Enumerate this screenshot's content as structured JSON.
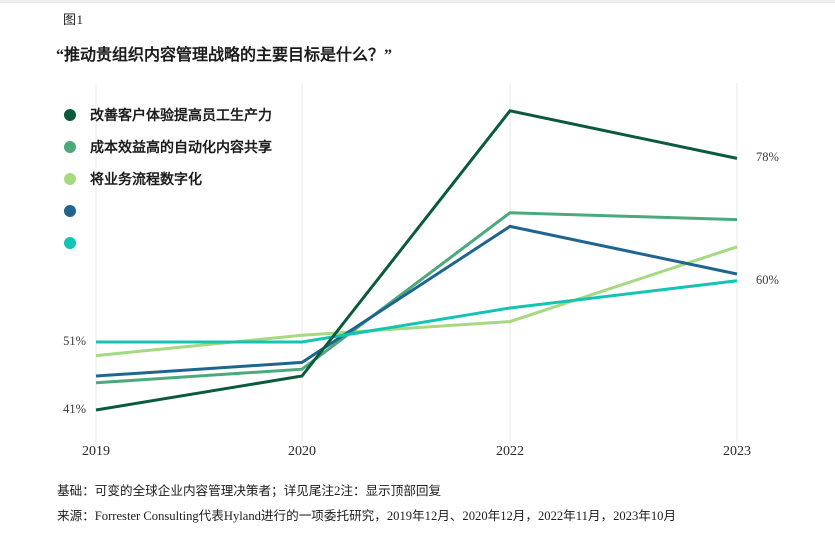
{
  "figure_label": "图1",
  "title": "“推动贵组织内容管理战略的主要目标是什么？”",
  "chart_data": {
    "type": "line",
    "categories": [
      "2019",
      "2020",
      "2022",
      "2023"
    ],
    "series": [
      {
        "name": "改善客户体验提高员工生产力",
        "color": "#0b5a3c",
        "values": [
          41,
          46,
          85,
          78
        ]
      },
      {
        "name": "成本效益高的自动化内容共享",
        "color": "#4aaa7c",
        "values": [
          45,
          47,
          70,
          69
        ]
      },
      {
        "name": "将业务流程数字化",
        "color": "#a5d982",
        "values": [
          49,
          52,
          54,
          65
        ]
      },
      {
        "name": "",
        "color": "#1f6590",
        "values": [
          46,
          48,
          68,
          61
        ]
      },
      {
        "name": "",
        "color": "#12c4b4",
        "values": [
          51,
          51,
          56,
          60
        ]
      }
    ],
    "y_labels": [
      {
        "text": "51%",
        "value": 51,
        "side": "left"
      },
      {
        "text": "41%",
        "value": 41,
        "side": "left"
      },
      {
        "text": "78%",
        "value": 78,
        "side": "right"
      },
      {
        "text": "60%",
        "value": 60,
        "side": "right"
      }
    ],
    "ylim": [
      35,
      90
    ],
    "grid": "vertical-only",
    "gridline_color": "#e8e8e8",
    "legend_position": "top-left",
    "line_width": 3
  },
  "footer": {
    "base_note": "基础：可变的全球企业内容管理决策者；详见尾注2注：显示顶部回复",
    "source_note": "来源：Forrester Consulting代表Hyland进行的一项委托研究，2019年12月、2020年12月，2022年11月，2023年10月"
  }
}
